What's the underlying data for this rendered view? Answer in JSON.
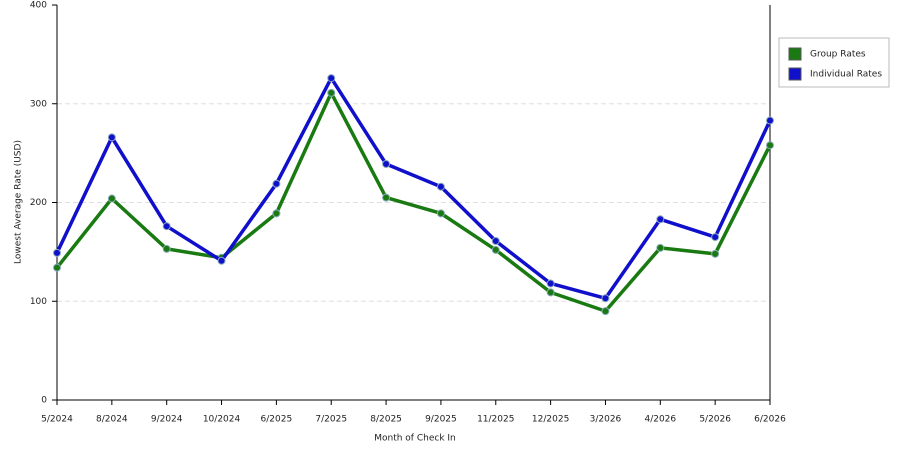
{
  "chart_data": {
    "type": "line",
    "x_label": "Month of Check In",
    "y_label": "Lowest Average Rate (USD)",
    "categories": [
      "5/2024",
      "8/2024",
      "9/2024",
      "10/2024",
      "6/2025",
      "7/2025",
      "8/2025",
      "9/2025",
      "11/2025",
      "12/2025",
      "3/2026",
      "4/2026",
      "5/2026",
      "6/2026"
    ],
    "series": [
      {
        "name": "Group Rates",
        "color": "#1a7a12",
        "values": [
          134,
          204,
          153,
          144,
          189,
          311,
          205,
          189,
          152,
          109,
          90,
          154,
          148,
          258
        ]
      },
      {
        "name": "Individual Rates",
        "color": "#1010cc",
        "values": [
          149,
          266,
          176,
          141,
          219,
          326,
          239,
          216,
          161,
          118,
          103,
          183,
          165,
          283
        ]
      }
    ],
    "ylim": [
      0,
      400
    ],
    "yticks": [
      0,
      100,
      200,
      300,
      400
    ],
    "grid": true,
    "legend": "right"
  }
}
